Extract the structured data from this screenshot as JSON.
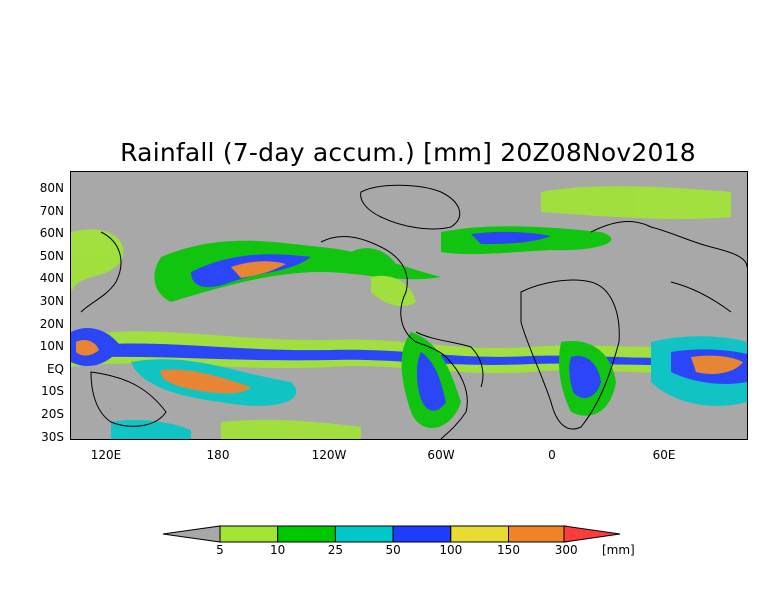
{
  "title": "Rainfall (7-day accum.) [mm] 20Z08Nov2018",
  "map": {
    "background_color": "#a8a8a8",
    "lat_labels": [
      "80N",
      "70N",
      "60N",
      "50N",
      "40N",
      "30N",
      "20N",
      "10N",
      "EQ",
      "10S",
      "20S",
      "30S"
    ],
    "lon_labels": [
      "120E",
      "180",
      "120W",
      "60W",
      "0",
      "60E"
    ]
  },
  "colorbar": {
    "units": "[mm]",
    "labels": [
      "5",
      "10",
      "25",
      "50",
      "100",
      "150",
      "300"
    ],
    "colors": [
      "#a8a8a8",
      "#a0e632",
      "#00c800",
      "#00c8c8",
      "#1e3cff",
      "#e6dc32",
      "#f08228",
      "#ff3c3c"
    ]
  }
}
